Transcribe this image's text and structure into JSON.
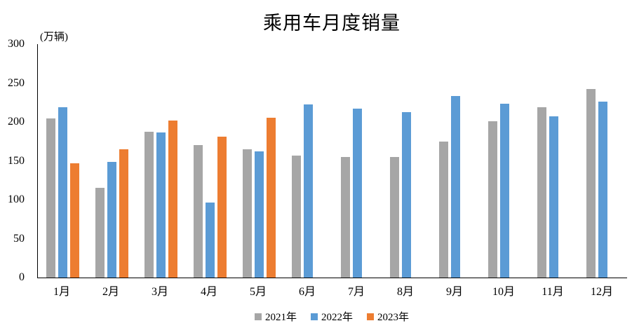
{
  "chart_data": {
    "type": "bar",
    "title": "乘用车月度销量",
    "unit_label": "(万辆)",
    "xlabel": "",
    "ylabel": "万辆",
    "ylim": [
      0,
      300
    ],
    "y_ticks": [
      0,
      50,
      100,
      150,
      200,
      250,
      300
    ],
    "grid": false,
    "legend_position": "bottom",
    "categories": [
      "1月",
      "2月",
      "3月",
      "4月",
      "5月",
      "6月",
      "7月",
      "8月",
      "9月",
      "10月",
      "11月",
      "12月"
    ],
    "series": [
      {
        "name": "2021年",
        "color": "#A6A6A6",
        "values": [
          204.5,
          115.6,
          187.4,
          170.4,
          164.6,
          156.9,
          155.1,
          155.2,
          175.1,
          200.7,
          219.2,
          242.2
        ]
      },
      {
        "name": "2022年",
        "color": "#5B9BD5",
        "values": [
          218.6,
          148.7,
          186.4,
          96.5,
          162.3,
          222.2,
          217.4,
          212.5,
          233.2,
          223.1,
          207.5,
          226.3
        ]
      },
      {
        "name": "2023年",
        "color": "#ED7D31",
        "values": [
          146.9,
          165.3,
          201.7,
          181.1,
          205.1,
          null,
          null,
          null,
          null,
          null,
          null,
          null
        ]
      }
    ]
  }
}
